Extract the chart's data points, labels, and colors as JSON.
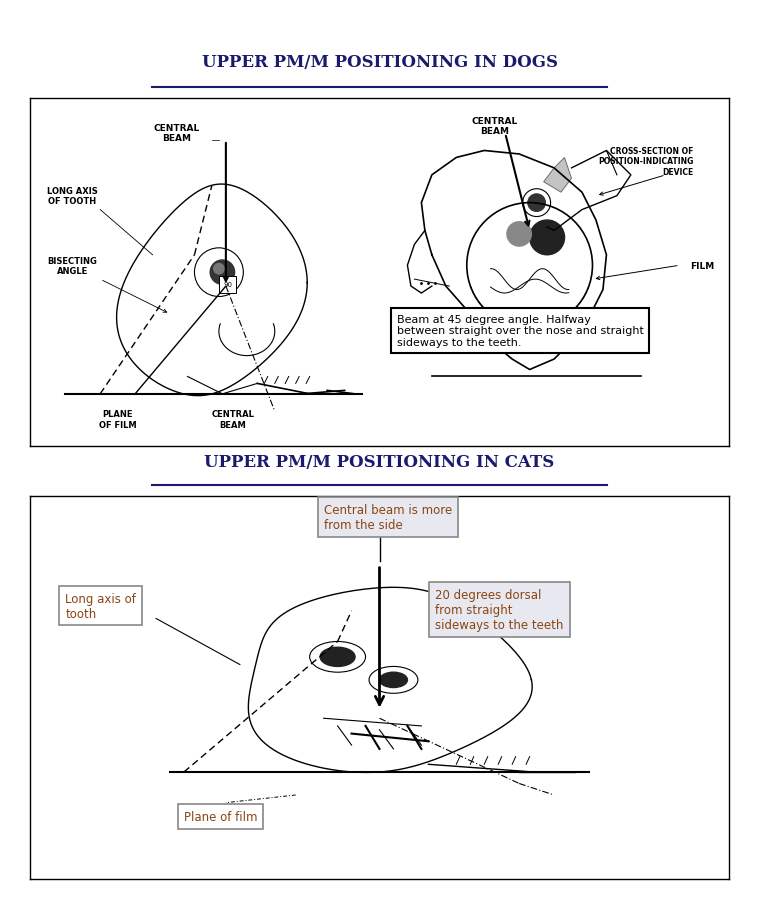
{
  "title_dogs": "UPPER PM/M POSITIONING IN DOGS",
  "title_cats": "UPPER PM/M POSITIONING IN CATS",
  "title_fontsize": 12,
  "title_color": "#1a1a6e",
  "bg_color": "#ffffff",
  "dogs_box_annotation": "Beam at 45 degree angle. Halfway\nbetween straight over the nose and straight\nsideways to the teeth.",
  "dogs_labels": {
    "central_beam_left": "CENTRAL\nBEAM",
    "long_axis": "LONG AXIS\nOF TOOTH",
    "bisecting_angle": "BISECTING\nANGLE",
    "plane_of_film": "PLANE\nOF FILM",
    "central_beam_bottom": "CENTRAL\nBEAM",
    "central_beam_right": "CENTRAL\nBEAM",
    "cross_section": "CROSS-SECTION OF\nPOSITION-INDICATING\nDEVICE",
    "film": "FILM",
    "angle_90": "90"
  },
  "cats_labels": {
    "central_beam": "Central beam is more\nfrom the side",
    "long_axis": "Long axis of\ntooth",
    "20_degrees": "20 degrees dorsal\nfrom straight\nsideways to the teeth",
    "plane_of_film": "Plane of film"
  },
  "label_box_color": "#aaaaaa",
  "label_text_color": "#8B4513",
  "annotation_box_color": "#000000"
}
